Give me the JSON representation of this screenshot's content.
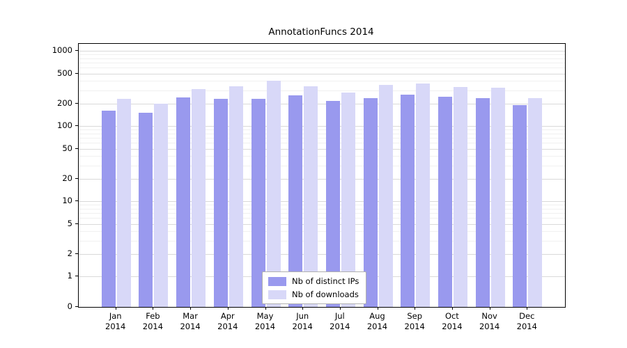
{
  "chart_data": {
    "type": "bar",
    "title": "AnnotationFuncs 2014",
    "categories": [
      "Jan",
      "Feb",
      "Mar",
      "Apr",
      "May",
      "Jun",
      "Jul",
      "Aug",
      "Sep",
      "Oct",
      "Nov",
      "Dec"
    ],
    "category_year": "2014",
    "series": [
      {
        "name": "Nb of distinct IPs",
        "color": "#9999ee",
        "values": [
          160,
          150,
          240,
          230,
          230,
          255,
          215,
          235,
          260,
          245,
          235,
          190
        ]
      },
      {
        "name": "Nb of downloads",
        "color": "#d8d8f8",
        "values": [
          230,
          200,
          310,
          340,
          400,
          335,
          280,
          350,
          370,
          330,
          325,
          235
        ]
      }
    ],
    "yticks": [
      0,
      1,
      2,
      5,
      10,
      20,
      50,
      100,
      200,
      500,
      1000
    ],
    "minor_yticks": [
      3,
      4,
      6,
      7,
      8,
      9,
      30,
      40,
      60,
      70,
      80,
      90,
      300,
      400,
      600,
      700,
      800,
      900
    ],
    "scale": "symlog",
    "ylim": [
      0,
      1000
    ],
    "grid": true,
    "legend_position": "lower center"
  }
}
